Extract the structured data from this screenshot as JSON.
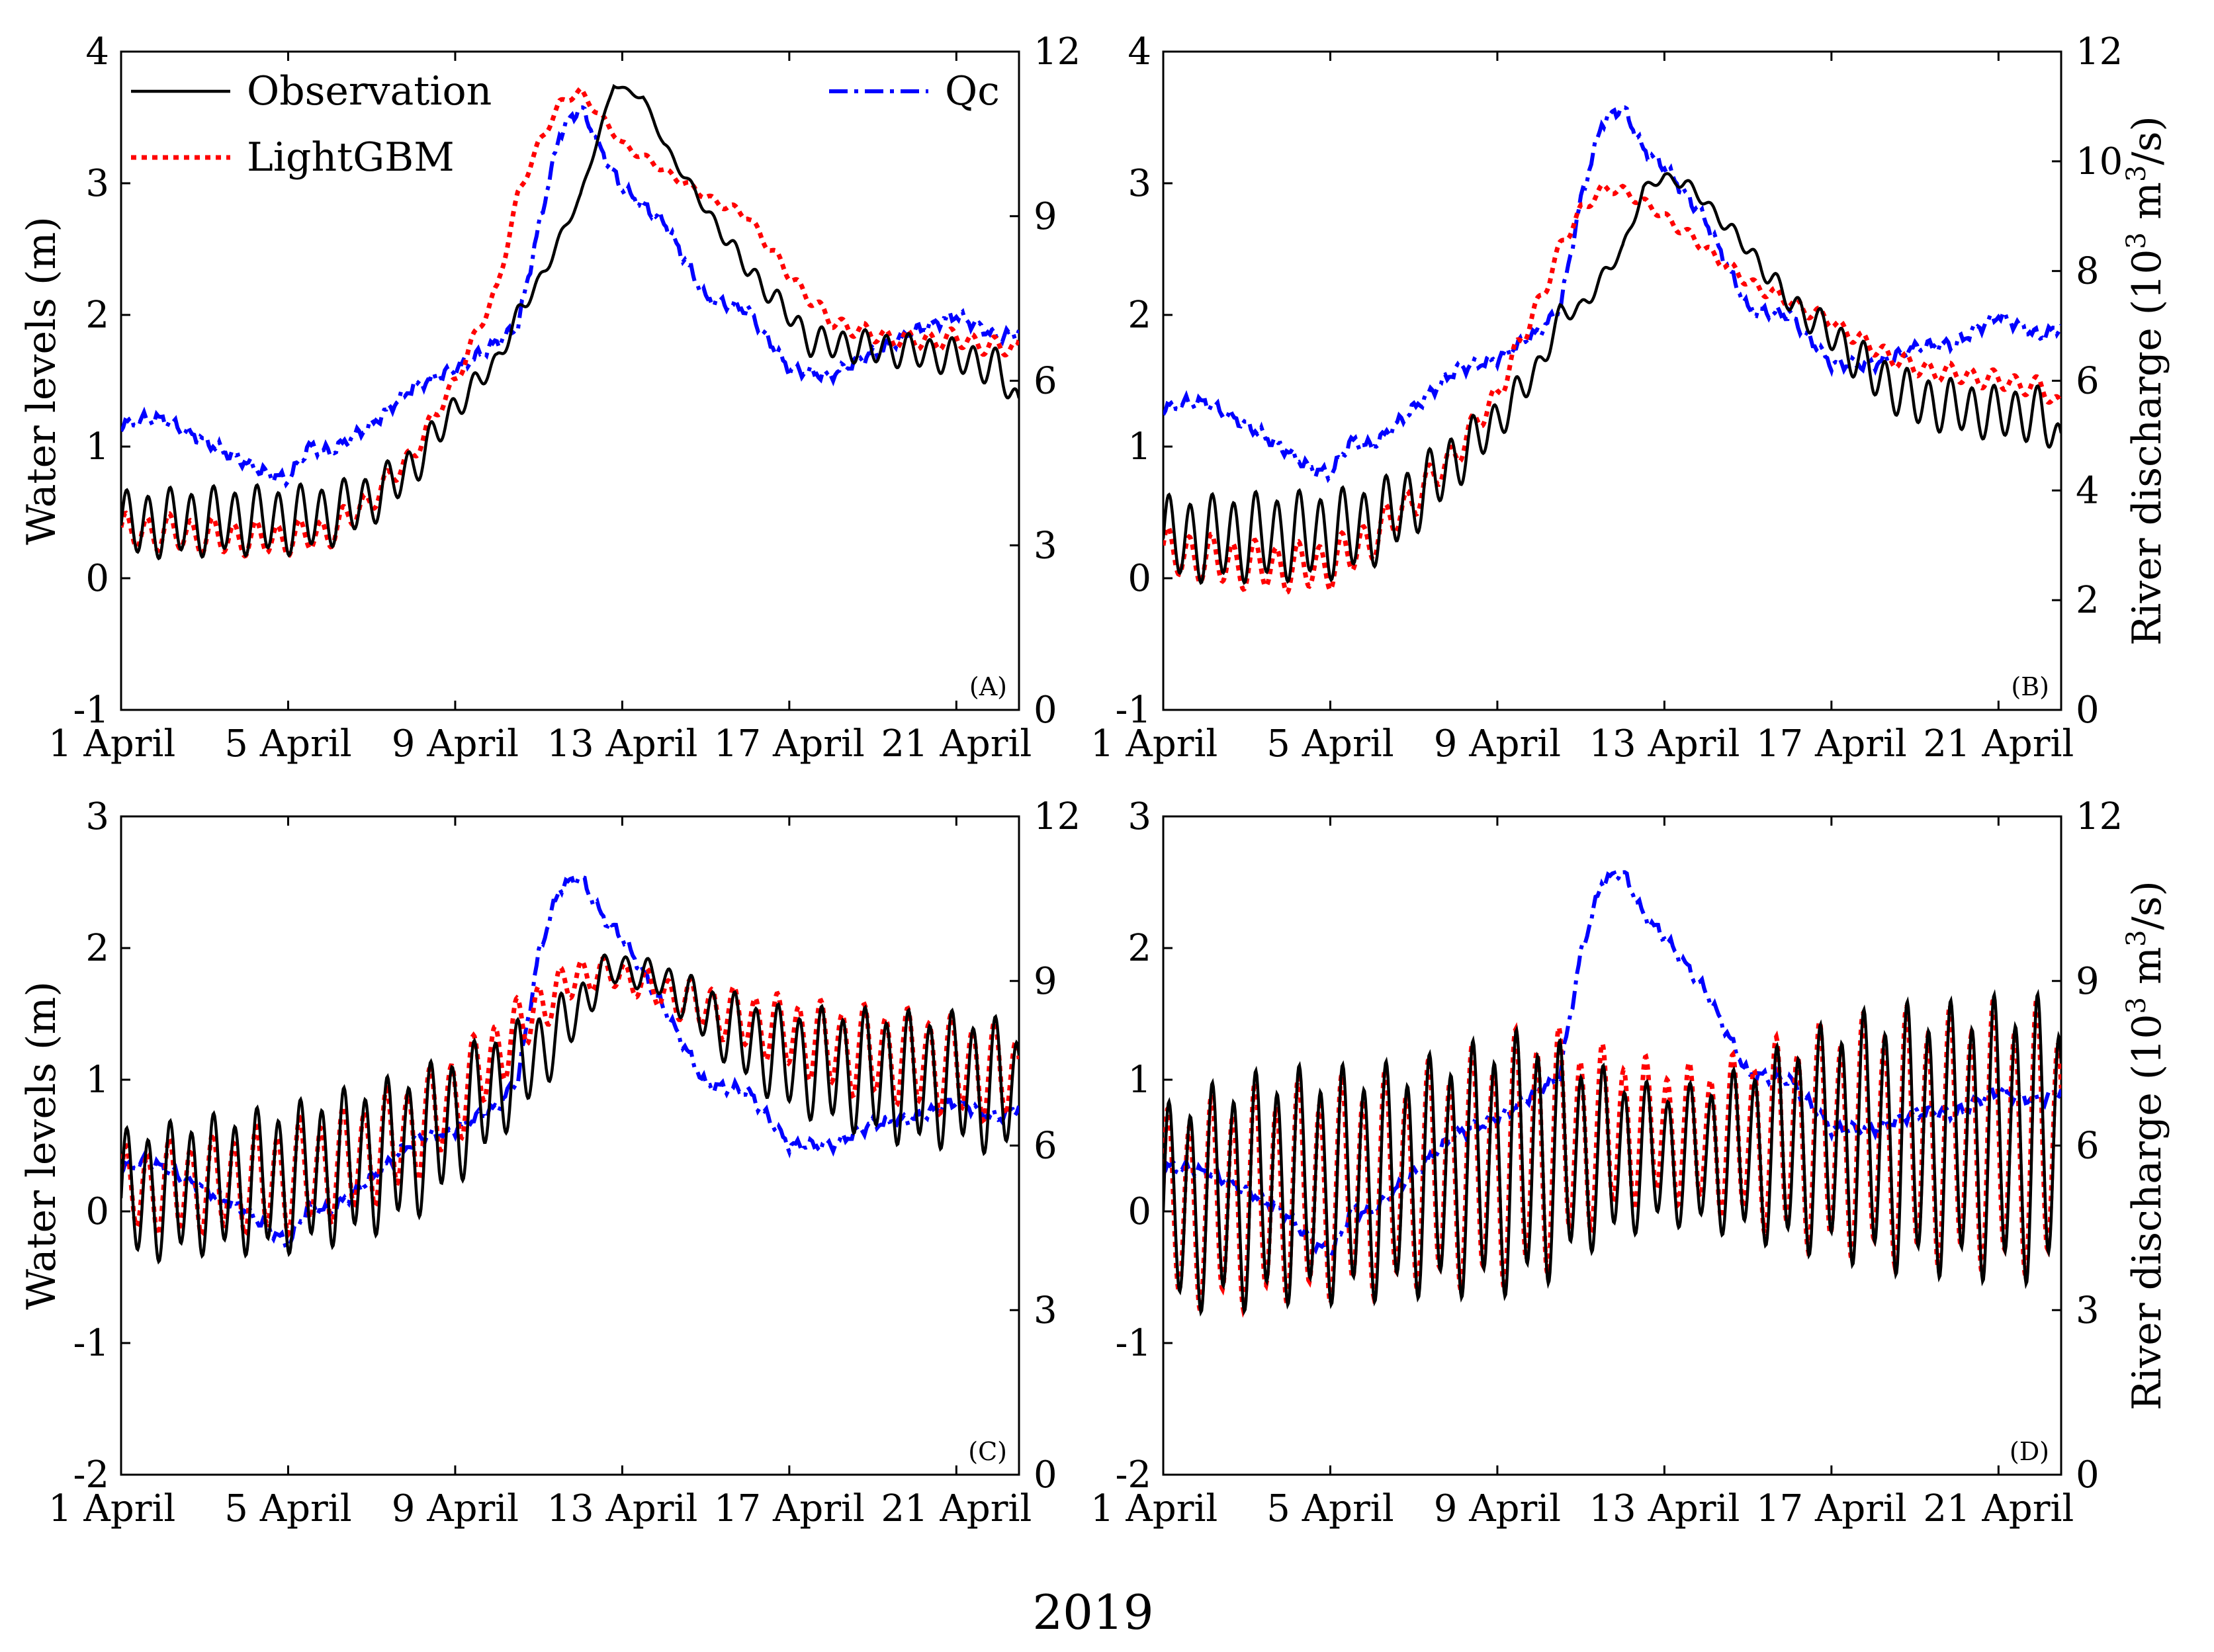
{
  "figure": {
    "caption": "2019",
    "x_tick_labels": [
      "1 April",
      "5 April",
      "9 April",
      "13 April",
      "17 April",
      "21 April"
    ],
    "left_axis_label": "Water levels (m)",
    "right_axis_label_prefix": "River discharge (10",
    "right_axis_label_exp": "3",
    "right_axis_label_unit_a": " m",
    "right_axis_label_unit_exp": "3",
    "right_axis_label_unit_b": "/s)",
    "legend": [
      {
        "name": "Observation",
        "color": "#000000",
        "style": "solid"
      },
      {
        "name": "LightGBM",
        "color": "#ff0000",
        "style": "dotted"
      },
      {
        "name": "Qc",
        "color": "#0000ff",
        "style": "dashdot"
      }
    ]
  },
  "chart_data": [
    {
      "panel": "(A)",
      "type": "line",
      "xlim": [
        1,
        22.5
      ],
      "xticks": [
        1,
        5,
        9,
        13,
        17,
        21
      ],
      "ylim_left": [
        -1,
        4
      ],
      "yticks_left": [
        "-1",
        "0",
        "1",
        "2",
        "3",
        "4"
      ],
      "ylim_right": [
        0,
        12
      ],
      "yticks_right": [
        "0",
        "3",
        "6",
        "9",
        "12"
      ],
      "observation": {
        "x": [
          1,
          2,
          3,
          4,
          5,
          6,
          7,
          8,
          9,
          10,
          10.5,
          11,
          12,
          12.8,
          13.5,
          14,
          15,
          16,
          17,
          17.5,
          18,
          19,
          20,
          21,
          22,
          22.5
        ],
        "y": [
          0.4,
          0.42,
          0.43,
          0.44,
          0.44,
          0.48,
          0.6,
          0.85,
          1.3,
          1.65,
          2.0,
          2.25,
          2.9,
          3.75,
          3.65,
          3.3,
          2.8,
          2.35,
          2.0,
          1.8,
          1.78,
          1.75,
          1.72,
          1.68,
          1.6,
          1.3
        ],
        "amp": [
          0.28,
          0.28,
          0.28,
          0.28,
          0.28,
          0.26,
          0.22,
          0.18,
          0.12,
          0.08,
          0.07,
          0.06,
          0.03,
          0.02,
          0.02,
          0.03,
          0.05,
          0.08,
          0.1,
          0.12,
          0.13,
          0.14,
          0.14,
          0.15,
          0.15,
          0.12
        ]
      },
      "lightgbm": {
        "x": [
          1,
          2,
          3,
          4,
          5,
          6,
          7,
          8,
          9,
          10,
          10.5,
          11,
          11.5,
          12,
          13,
          14,
          15,
          16,
          17,
          18,
          19,
          20,
          21,
          22,
          22.5
        ],
        "y": [
          0.35,
          0.35,
          0.32,
          0.3,
          0.3,
          0.35,
          0.6,
          0.95,
          1.5,
          2.2,
          2.9,
          3.3,
          3.6,
          3.7,
          3.3,
          3.1,
          2.9,
          2.75,
          2.3,
          1.95,
          1.85,
          1.8,
          1.82,
          1.75,
          1.75
        ],
        "amp": [
          0.15,
          0.15,
          0.15,
          0.14,
          0.14,
          0.13,
          0.1,
          0.08,
          0.06,
          0.05,
          0.04,
          0.04,
          0.03,
          0.03,
          0.03,
          0.03,
          0.03,
          0.04,
          0.05,
          0.06,
          0.07,
          0.08,
          0.08,
          0.08,
          0.06
        ]
      },
      "qc": {
        "x": [
          1,
          1.5,
          2,
          3,
          4,
          4.5,
          5,
          5.5,
          6,
          7,
          8,
          9,
          10,
          10.5,
          11,
          11.5,
          12,
          12.5,
          13,
          14,
          15,
          16,
          17,
          18,
          19,
          20,
          21,
          22,
          22.5
        ],
        "y": [
          5.2,
          5.3,
          5.3,
          4.9,
          4.5,
          4.3,
          4.2,
          4.8,
          4.7,
          5.2,
          5.9,
          6.2,
          6.7,
          7.0,
          8.8,
          10.5,
          11.0,
          10.2,
          9.5,
          8.9,
          7.5,
          7.3,
          6.2,
          6.1,
          6.5,
          6.9,
          7.2,
          6.8,
          6.9
        ]
      }
    },
    {
      "panel": "(B)",
      "type": "line",
      "xlim": [
        1,
        22.5
      ],
      "xticks": [
        1,
        5,
        9,
        13,
        17,
        21
      ],
      "ylim_left": [
        -1,
        4
      ],
      "yticks_left": [
        "-1",
        "0",
        "1",
        "2",
        "3",
        "4"
      ],
      "ylim_right": [
        0,
        12
      ],
      "yticks_right": [
        "0",
        "2",
        "4",
        "6",
        "8",
        "10",
        "12"
      ],
      "observation": {
        "x": [
          1,
          2,
          3,
          4,
          5,
          6,
          7,
          8,
          9,
          10,
          10.5,
          11,
          12,
          12.5,
          13,
          13.5,
          14,
          15,
          16,
          17,
          18,
          19,
          20,
          21,
          22,
          22.5
        ],
        "y": [
          0.3,
          0.3,
          0.31,
          0.32,
          0.33,
          0.4,
          0.6,
          0.9,
          1.2,
          1.6,
          2.0,
          2.05,
          2.5,
          2.95,
          3.05,
          3.0,
          2.85,
          2.5,
          2.1,
          1.85,
          1.55,
          1.35,
          1.3,
          1.25,
          1.25,
          1.0
        ],
        "amp": [
          0.35,
          0.35,
          0.36,
          0.36,
          0.36,
          0.34,
          0.3,
          0.25,
          0.18,
          0.12,
          0.08,
          0.07,
          0.05,
          0.04,
          0.04,
          0.05,
          0.05,
          0.07,
          0.1,
          0.15,
          0.2,
          0.22,
          0.22,
          0.22,
          0.22,
          0.18
        ]
      },
      "lightgbm": {
        "x": [
          1,
          2,
          3,
          4,
          5,
          6,
          7,
          8,
          9,
          10,
          10.5,
          11,
          11.5,
          12,
          13,
          14,
          15,
          16,
          17,
          18,
          19,
          20,
          21,
          22,
          22.5
        ],
        "y": [
          0.2,
          0.15,
          0.1,
          0.08,
          0.1,
          0.3,
          0.6,
          0.95,
          1.4,
          2.1,
          2.5,
          2.8,
          2.95,
          2.95,
          2.75,
          2.5,
          2.25,
          2.1,
          1.95,
          1.75,
          1.6,
          1.55,
          1.5,
          1.45,
          1.3
        ],
        "amp": [
          0.2,
          0.2,
          0.2,
          0.2,
          0.2,
          0.18,
          0.15,
          0.12,
          0.1,
          0.08,
          0.06,
          0.05,
          0.04,
          0.04,
          0.04,
          0.05,
          0.05,
          0.06,
          0.06,
          0.07,
          0.08,
          0.08,
          0.08,
          0.08,
          0.07
        ]
      },
      "qc": {
        "x": [
          1,
          1.5,
          2,
          3,
          4,
          4.5,
          5,
          5.5,
          6,
          7,
          8,
          9,
          10,
          10.5,
          11,
          11.5,
          12,
          12.5,
          13,
          14,
          15,
          16,
          17,
          18,
          19,
          20,
          21,
          22,
          22.5
        ],
        "y": [
          5.5,
          5.6,
          5.6,
          5.2,
          4.7,
          4.4,
          4.3,
          4.9,
          4.8,
          5.5,
          6.2,
          6.4,
          6.9,
          7.3,
          9.3,
          10.7,
          11.0,
          10.2,
          9.9,
          8.9,
          7.3,
          7.2,
          6.3,
          6.3,
          6.6,
          6.7,
          7.2,
          6.8,
          7.0
        ]
      }
    },
    {
      "panel": "(C)",
      "type": "line",
      "xlim": [
        1,
        22.5
      ],
      "xticks": [
        1,
        5,
        9,
        13,
        17,
        21
      ],
      "ylim_left": [
        -2,
        3
      ],
      "yticks_left": [
        "-2",
        "-1",
        "0",
        "1",
        "2",
        "3"
      ],
      "ylim_right": [
        0,
        12
      ],
      "yticks_right": [
        "0",
        "3",
        "6",
        "9",
        "12"
      ],
      "observation": {
        "x": [
          1,
          2,
          3,
          4,
          5,
          6,
          7,
          8,
          9,
          10,
          11,
          12,
          12.5,
          13,
          14,
          15,
          16,
          17,
          18,
          19,
          20,
          21,
          22,
          22.5
        ],
        "y": [
          0.1,
          0.15,
          0.2,
          0.22,
          0.25,
          0.32,
          0.4,
          0.5,
          0.7,
          0.95,
          1.2,
          1.55,
          1.8,
          1.85,
          1.75,
          1.5,
          1.3,
          1.15,
          1.1,
          1.05,
          1.0,
          1.0,
          0.95,
          0.9
        ],
        "amp": [
          0.55,
          0.55,
          0.56,
          0.58,
          0.6,
          0.62,
          0.62,
          0.6,
          0.55,
          0.45,
          0.35,
          0.22,
          0.15,
          0.12,
          0.15,
          0.25,
          0.35,
          0.42,
          0.48,
          0.52,
          0.55,
          0.55,
          0.55,
          0.5
        ]
      },
      "lightgbm": {
        "x": [
          1,
          2,
          3,
          4,
          5,
          6,
          7,
          8,
          9,
          10,
          11,
          12,
          13,
          14,
          15,
          16,
          17,
          18,
          19,
          20,
          21,
          22,
          22.5
        ],
        "y": [
          0.15,
          0.18,
          0.2,
          0.22,
          0.25,
          0.32,
          0.45,
          0.6,
          0.85,
          1.2,
          1.55,
          1.8,
          1.8,
          1.65,
          1.55,
          1.45,
          1.35,
          1.25,
          1.2,
          1.15,
          1.1,
          1.05,
          1.0
        ],
        "amp": [
          0.35,
          0.38,
          0.4,
          0.42,
          0.45,
          0.45,
          0.45,
          0.42,
          0.38,
          0.3,
          0.22,
          0.14,
          0.12,
          0.15,
          0.2,
          0.25,
          0.3,
          0.35,
          0.38,
          0.4,
          0.4,
          0.4,
          0.38
        ]
      },
      "qc": {
        "x": [
          1,
          1.5,
          2,
          3,
          4,
          4.5,
          5,
          5.5,
          6,
          7,
          8,
          9,
          10,
          10.5,
          11,
          11.5,
          12,
          12.5,
          13,
          14,
          15,
          16,
          17,
          18,
          19,
          20,
          21,
          22,
          22.5
        ],
        "y": [
          5.6,
          5.7,
          5.6,
          5.2,
          4.8,
          4.5,
          4.2,
          4.9,
          4.8,
          5.4,
          6.1,
          6.3,
          6.7,
          7.2,
          9.5,
          10.7,
          10.9,
          10.2,
          9.8,
          8.5,
          7.1,
          7.0,
          6.0,
          6.0,
          6.4,
          6.5,
          6.8,
          6.5,
          6.7
        ]
      }
    },
    {
      "panel": "(D)",
      "type": "line",
      "xlim": [
        1,
        22.5
      ],
      "xticks": [
        1,
        5,
        9,
        13,
        17,
        21
      ],
      "ylim_left": [
        -2,
        3
      ],
      "yticks_left": [
        "-2",
        "-1",
        "0",
        "1",
        "2",
        "3"
      ],
      "ylim_right": [
        0,
        12
      ],
      "yticks_right": [
        "0",
        "3",
        "6",
        "9",
        "12"
      ],
      "observation": {
        "x": [
          1,
          2,
          3,
          4,
          5,
          6,
          7,
          8,
          9,
          10,
          11,
          12,
          13,
          14,
          15,
          16,
          17,
          18,
          19,
          20,
          21,
          22,
          22.5
        ],
        "y": [
          0.0,
          0.1,
          0.15,
          0.2,
          0.2,
          0.22,
          0.25,
          0.3,
          0.35,
          0.4,
          0.42,
          0.42,
          0.42,
          0.42,
          0.45,
          0.5,
          0.55,
          0.55,
          0.55,
          0.55,
          0.55,
          0.55,
          0.5
        ],
        "amp": [
          0.85,
          0.9,
          0.95,
          0.95,
          0.95,
          0.95,
          0.95,
          1.0,
          1.05,
          1.05,
          0.8,
          0.65,
          0.55,
          0.6,
          0.7,
          0.85,
          0.95,
          1.05,
          1.1,
          1.1,
          1.15,
          1.15,
          1.1
        ]
      },
      "lightgbm": {
        "x": [
          1,
          2,
          3,
          4,
          5,
          6,
          7,
          8,
          9,
          10,
          11,
          12,
          13,
          14,
          15,
          16,
          17,
          18,
          19,
          20,
          21,
          22,
          22.5
        ],
        "y": [
          0.0,
          0.05,
          0.1,
          0.15,
          0.15,
          0.2,
          0.25,
          0.3,
          0.35,
          0.45,
          0.55,
          0.6,
          0.6,
          0.55,
          0.55,
          0.55,
          0.55,
          0.55,
          0.55,
          0.55,
          0.55,
          0.55,
          0.5
        ],
        "amp": [
          0.8,
          0.85,
          0.9,
          0.9,
          0.9,
          0.9,
          0.9,
          0.95,
          1.0,
          1.05,
          0.8,
          0.65,
          0.55,
          0.6,
          0.7,
          0.85,
          0.95,
          1.0,
          1.05,
          1.05,
          1.1,
          1.1,
          1.05
        ]
      },
      "qc": {
        "x": [
          1,
          1.5,
          2,
          3,
          4,
          4.5,
          5,
          5.5,
          6,
          7,
          8,
          9,
          10,
          10.5,
          11,
          11.5,
          12,
          12.5,
          13,
          14,
          15,
          16,
          17,
          18,
          19,
          20,
          21,
          22,
          22.5
        ],
        "y": [
          5.6,
          5.6,
          5.5,
          5.2,
          4.7,
          4.3,
          4.0,
          4.8,
          4.8,
          5.5,
          6.2,
          6.5,
          7.0,
          7.3,
          9.5,
          10.8,
          11.0,
          10.2,
          9.8,
          8.8,
          7.3,
          7.2,
          6.3,
          6.3,
          6.6,
          6.6,
          7.0,
          6.8,
          7.0
        ]
      }
    }
  ]
}
